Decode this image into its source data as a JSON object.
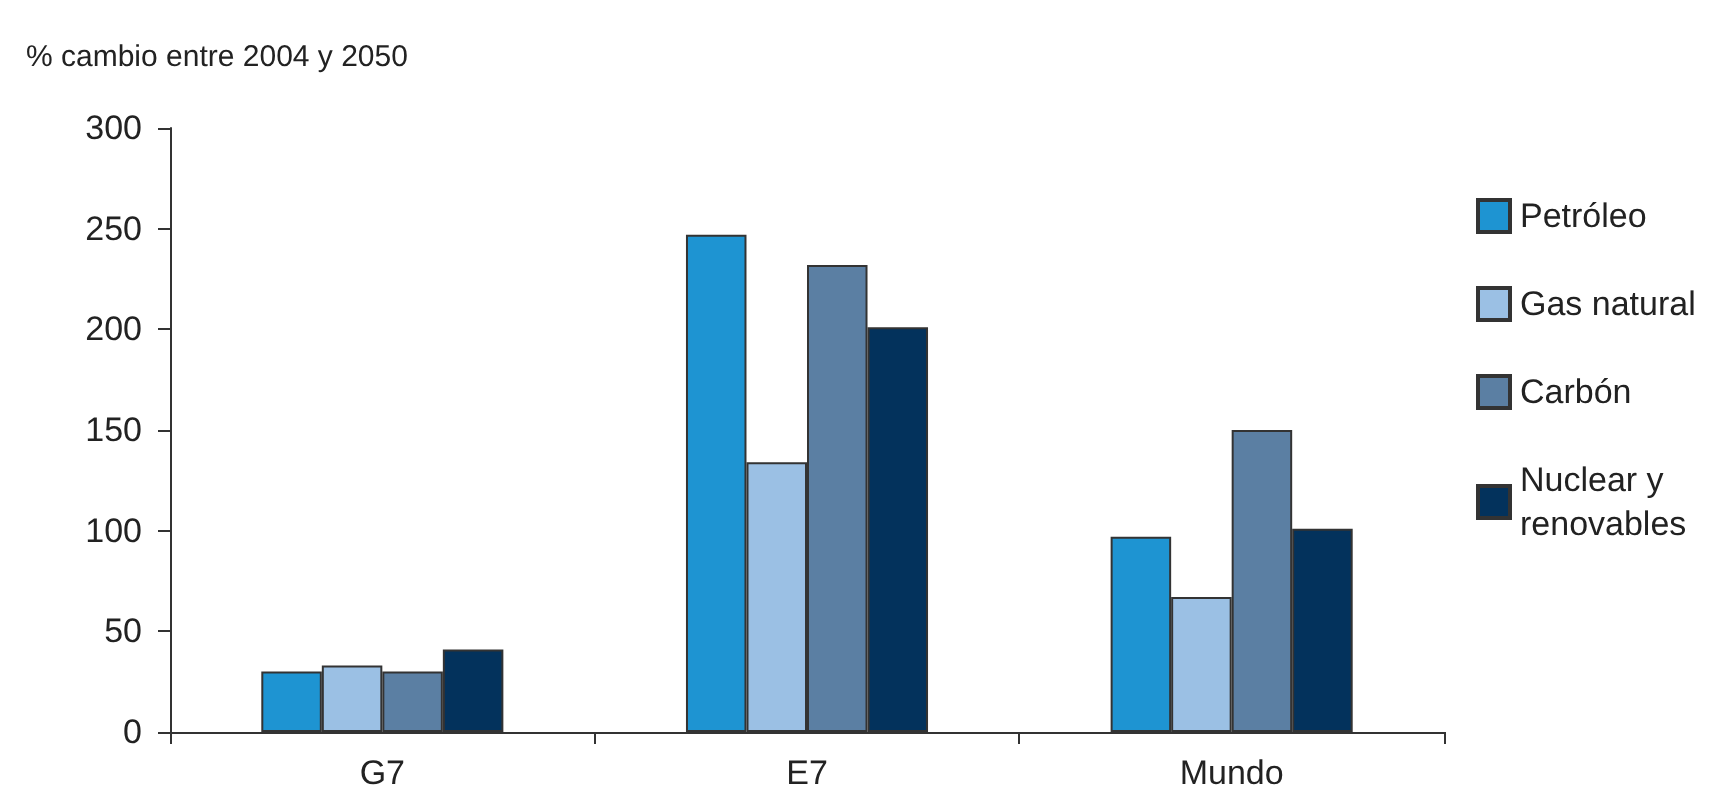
{
  "chart_data": {
    "type": "bar",
    "ylabel": "% cambio entre 2004 y 2050",
    "categories": [
      "G7",
      "E7",
      "Mundo"
    ],
    "series": [
      {
        "name": "Petróleo",
        "color": "#1e94d2",
        "values": [
          30,
          247,
          97
        ]
      },
      {
        "name": "Gas natural",
        "color": "#9bc0e4",
        "values": [
          33,
          134,
          67
        ]
      },
      {
        "name": "Carbón",
        "color": "#5b7fa3",
        "values": [
          30,
          232,
          150
        ]
      },
      {
        "name": "Nuclear y renovables",
        "color": "#03325c",
        "values": [
          41,
          201,
          101
        ]
      }
    ],
    "ylim": [
      0,
      300
    ],
    "yticks": [
      0,
      50,
      100,
      150,
      200,
      250,
      300
    ],
    "grid": false,
    "legend": "right"
  }
}
